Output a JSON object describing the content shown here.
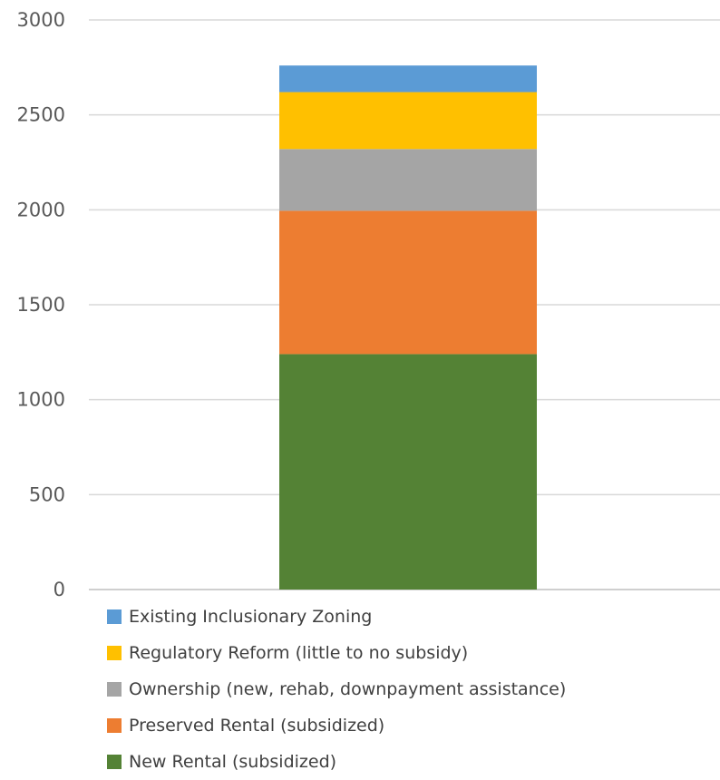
{
  "chart_data": {
    "type": "bar",
    "stacked": true,
    "categories": [
      ""
    ],
    "ylim": [
      0,
      3000
    ],
    "yticks": [
      0,
      500,
      1000,
      1500,
      2000,
      2500,
      3000
    ],
    "grid": true,
    "legend_position": "bottom",
    "series": [
      {
        "name": "New Rental (subsidized)",
        "values": [
          1240
        ],
        "color": "#548235"
      },
      {
        "name": "Preserved Rental (subsidized)",
        "values": [
          755
        ],
        "color": "#ED7D31"
      },
      {
        "name": "Ownership (new, rehab, downpayment assistance)",
        "values": [
          325
        ],
        "color": "#A5A5A5"
      },
      {
        "name": "Regulatory Reform (little to no subsidy)",
        "values": [
          300
        ],
        "color": "#FFC000"
      },
      {
        "name": "Existing Inclusionary Zoning",
        "values": [
          140
        ],
        "color": "#5B9BD5"
      }
    ]
  }
}
